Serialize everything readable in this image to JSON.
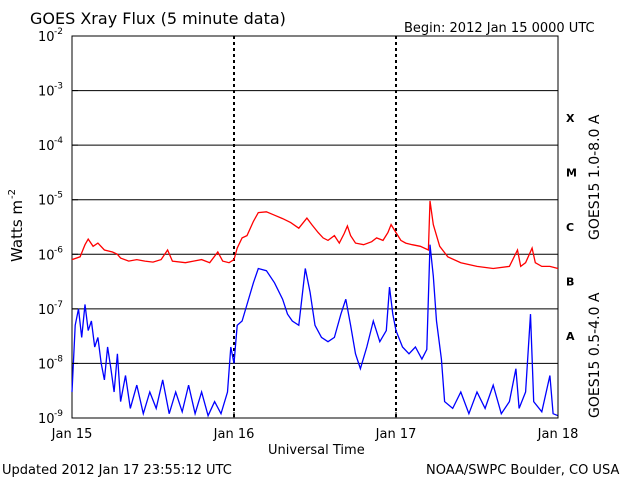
{
  "chart_data": {
    "type": "line",
    "title": "GOES Xray Flux (5 minute data)",
    "begin_label": "Begin:  2012 Jan 15 0000 UTC",
    "xlabel": "Universal Time",
    "ylabel_base": "Watts m",
    "ylabel_exp": "-2",
    "x_ticks": [
      "Jan 15",
      "Jan 16",
      "Jan 17",
      "Jan 18"
    ],
    "x_range_days": [
      0,
      3
    ],
    "y_scale": "log",
    "y_range": [
      1e-09,
      0.01
    ],
    "y_ticks": [
      {
        "base": "10",
        "exp": "-9"
      },
      {
        "base": "10",
        "exp": "-8"
      },
      {
        "base": "10",
        "exp": "-7"
      },
      {
        "base": "10",
        "exp": "-6"
      },
      {
        "base": "10",
        "exp": "-5"
      },
      {
        "base": "10",
        "exp": "-4"
      },
      {
        "base": "10",
        "exp": "-3"
      },
      {
        "base": "10",
        "exp": "-2"
      }
    ],
    "flare_classes": [
      {
        "label": "A",
        "flux": 1e-08
      },
      {
        "label": "B",
        "flux": 1e-07
      },
      {
        "label": "C",
        "flux": 1e-06
      },
      {
        "label": "M",
        "flux": 1e-05
      },
      {
        "label": "X",
        "flux": 0.0001
      }
    ],
    "grid": true,
    "series": [
      {
        "name": "GOES15 1.0-8.0 A",
        "color": "#ff0000",
        "points": [
          [
            0.0,
            8e-07
          ],
          [
            0.05,
            9e-07
          ],
          [
            0.08,
            1.5e-06
          ],
          [
            0.1,
            1.9e-06
          ],
          [
            0.13,
            1.4e-06
          ],
          [
            0.16,
            1.6e-06
          ],
          [
            0.2,
            1.2e-06
          ],
          [
            0.25,
            1.1e-06
          ],
          [
            0.28,
            1e-06
          ],
          [
            0.3,
            8.5e-07
          ],
          [
            0.35,
            7.5e-07
          ],
          [
            0.4,
            8e-07
          ],
          [
            0.45,
            7.5e-07
          ],
          [
            0.5,
            7.2e-07
          ],
          [
            0.55,
            8e-07
          ],
          [
            0.59,
            1.2e-06
          ],
          [
            0.62,
            7.5e-07
          ],
          [
            0.7,
            7e-07
          ],
          [
            0.75,
            7.5e-07
          ],
          [
            0.8,
            8e-07
          ],
          [
            0.85,
            7e-07
          ],
          [
            0.9,
            1.1e-06
          ],
          [
            0.93,
            7.5e-07
          ],
          [
            0.97,
            7e-07
          ],
          [
            1.0,
            8e-07
          ],
          [
            1.02,
            1.3e-06
          ],
          [
            1.05,
            2e-06
          ],
          [
            1.08,
            2.2e-06
          ],
          [
            1.12,
            4e-06
          ],
          [
            1.15,
            5.8e-06
          ],
          [
            1.2,
            6e-06
          ],
          [
            1.25,
            5.2e-06
          ],
          [
            1.3,
            4.5e-06
          ],
          [
            1.35,
            3.8e-06
          ],
          [
            1.4,
            3e-06
          ],
          [
            1.45,
            4.6e-06
          ],
          [
            1.48,
            3.5e-06
          ],
          [
            1.52,
            2.5e-06
          ],
          [
            1.55,
            2e-06
          ],
          [
            1.58,
            1.8e-06
          ],
          [
            1.62,
            2.2e-06
          ],
          [
            1.65,
            1.6e-06
          ],
          [
            1.68,
            2.4e-06
          ],
          [
            1.7,
            3.3e-06
          ],
          [
            1.72,
            2.2e-06
          ],
          [
            1.75,
            1.6e-06
          ],
          [
            1.8,
            1.5e-06
          ],
          [
            1.85,
            1.7e-06
          ],
          [
            1.88,
            2e-06
          ],
          [
            1.92,
            1.8e-06
          ],
          [
            1.95,
            2.5e-06
          ],
          [
            1.97,
            3.5e-06
          ],
          [
            2.0,
            2.5e-06
          ],
          [
            2.03,
            1.8e-06
          ],
          [
            2.06,
            1.6e-06
          ],
          [
            2.1,
            1.5e-06
          ],
          [
            2.15,
            1.4e-06
          ],
          [
            2.2,
            1.2e-06
          ],
          [
            2.21,
            9.5e-06
          ],
          [
            2.23,
            3.5e-06
          ],
          [
            2.27,
            1.4e-06
          ],
          [
            2.32,
            9e-07
          ],
          [
            2.4,
            7e-07
          ],
          [
            2.5,
            6e-07
          ],
          [
            2.6,
            5.5e-07
          ],
          [
            2.7,
            6e-07
          ],
          [
            2.75,
            1.2e-06
          ],
          [
            2.77,
            6e-07
          ],
          [
            2.8,
            7e-07
          ],
          [
            2.84,
            1.3e-06
          ],
          [
            2.86,
            7e-07
          ],
          [
            2.9,
            6e-07
          ],
          [
            2.95,
            6e-07
          ],
          [
            3.0,
            5.5e-07
          ]
        ]
      },
      {
        "name": "GOES15 0.5-4.0 A",
        "color": "#0000ff",
        "points": [
          [
            0.0,
            3e-09
          ],
          [
            0.02,
            5e-08
          ],
          [
            0.04,
            1e-07
          ],
          [
            0.06,
            3e-08
          ],
          [
            0.08,
            1.2e-07
          ],
          [
            0.1,
            4e-08
          ],
          [
            0.12,
            6e-08
          ],
          [
            0.14,
            2e-08
          ],
          [
            0.16,
            3e-08
          ],
          [
            0.18,
            1e-08
          ],
          [
            0.2,
            5e-09
          ],
          [
            0.22,
            2e-08
          ],
          [
            0.24,
            8e-09
          ],
          [
            0.26,
            3e-09
          ],
          [
            0.28,
            1.5e-08
          ],
          [
            0.3,
            2e-09
          ],
          [
            0.33,
            6e-09
          ],
          [
            0.36,
            1.5e-09
          ],
          [
            0.4,
            4e-09
          ],
          [
            0.44,
            1.2e-09
          ],
          [
            0.48,
            3e-09
          ],
          [
            0.52,
            1.5e-09
          ],
          [
            0.56,
            5e-09
          ],
          [
            0.6,
            1.2e-09
          ],
          [
            0.64,
            3e-09
          ],
          [
            0.68,
            1.3e-09
          ],
          [
            0.72,
            4e-09
          ],
          [
            0.76,
            1.2e-09
          ],
          [
            0.8,
            3e-09
          ],
          [
            0.84,
            1.1e-09
          ],
          [
            0.88,
            2e-09
          ],
          [
            0.92,
            1.2e-09
          ],
          [
            0.96,
            3e-09
          ],
          [
            0.98,
            2e-08
          ],
          [
            1.0,
            1e-08
          ],
          [
            1.02,
            5e-08
          ],
          [
            1.05,
            6e-08
          ],
          [
            1.08,
            1.2e-07
          ],
          [
            1.12,
            3e-07
          ],
          [
            1.15,
            5.5e-07
          ],
          [
            1.2,
            5e-07
          ],
          [
            1.25,
            3e-07
          ],
          [
            1.3,
            1.5e-07
          ],
          [
            1.33,
            8e-08
          ],
          [
            1.36,
            6e-08
          ],
          [
            1.4,
            5e-08
          ],
          [
            1.44,
            5.5e-07
          ],
          [
            1.47,
            2e-07
          ],
          [
            1.5,
            5e-08
          ],
          [
            1.54,
            3e-08
          ],
          [
            1.58,
            2.5e-08
          ],
          [
            1.62,
            3e-08
          ],
          [
            1.66,
            8e-08
          ],
          [
            1.69,
            1.5e-07
          ],
          [
            1.72,
            5e-08
          ],
          [
            1.75,
            1.5e-08
          ],
          [
            1.78,
            8e-09
          ],
          [
            1.82,
            2e-08
          ],
          [
            1.86,
            6e-08
          ],
          [
            1.9,
            2.5e-08
          ],
          [
            1.94,
            4e-08
          ],
          [
            1.96,
            2.5e-07
          ],
          [
            1.98,
            8e-08
          ],
          [
            2.0,
            4e-08
          ],
          [
            2.04,
            2e-08
          ],
          [
            2.08,
            1.5e-08
          ],
          [
            2.12,
            2e-08
          ],
          [
            2.16,
            1.2e-08
          ],
          [
            2.19,
            1.8e-08
          ],
          [
            2.21,
            1.5e-06
          ],
          [
            2.23,
            4e-07
          ],
          [
            2.25,
            6e-08
          ],
          [
            2.28,
            1.2e-08
          ],
          [
            2.3,
            2e-09
          ],
          [
            2.35,
            1.5e-09
          ],
          [
            2.4,
            3e-09
          ],
          [
            2.45,
            1.2e-09
          ],
          [
            2.5,
            3e-09
          ],
          [
            2.55,
            1.5e-09
          ],
          [
            2.6,
            4e-09
          ],
          [
            2.65,
            1.2e-09
          ],
          [
            2.7,
            2e-09
          ],
          [
            2.74,
            8e-09
          ],
          [
            2.76,
            1.5e-09
          ],
          [
            2.8,
            3e-09
          ],
          [
            2.83,
            8e-08
          ],
          [
            2.85,
            2e-09
          ],
          [
            2.9,
            1.3e-09
          ],
          [
            2.95,
            6e-09
          ],
          [
            2.97,
            1.2e-09
          ],
          [
            3.0,
            1.1e-09
          ]
        ]
      }
    ]
  },
  "footer": {
    "updated": "Updated 2012 Jan 17 23:55:12 UTC",
    "credit": "NOAA/SWPC Boulder, CO USA"
  }
}
